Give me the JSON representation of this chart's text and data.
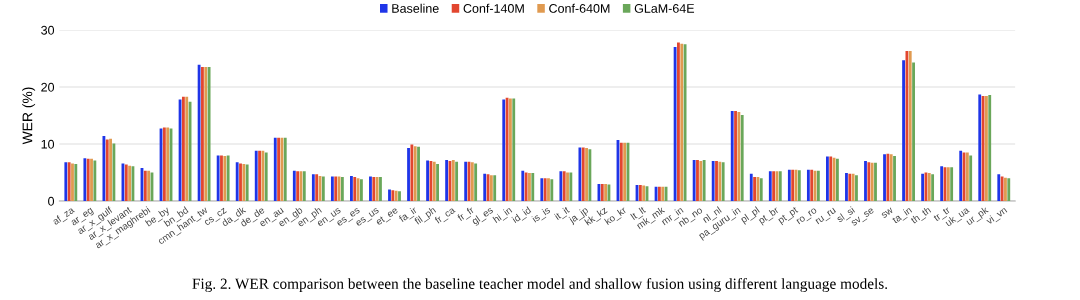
{
  "chart_data": {
    "type": "bar",
    "ylabel": "WER (%)",
    "ylim": [
      0,
      30
    ],
    "yticks": [
      0,
      10,
      20,
      30
    ],
    "grid": "y",
    "legend": "top",
    "categories": [
      "af_za",
      "ar_eg",
      "ar_x_gulf",
      "ar_x_levant",
      "ar_x_maghrebi",
      "be_by",
      "bn_bd",
      "cmn_hant_tw",
      "cs_cz",
      "da_dk",
      "de_de",
      "en_au",
      "en_gb",
      "en_ph",
      "en_us",
      "es_es",
      "es_us",
      "et_ee",
      "fa_ir",
      "fil_ph",
      "fr_ca",
      "fr_fr",
      "gl_es",
      "hi_in",
      "id_id",
      "is_is",
      "it_it",
      "ja_jp",
      "kk_kz",
      "ko_kr",
      "lt_lt",
      "mk_mk",
      "mr_in",
      "nb_no",
      "nl_nl",
      "pa_guru_in",
      "pl_pl",
      "pt_br",
      "pt_pt",
      "ro_ro",
      "ru_ru",
      "sl_si",
      "sv_se",
      "sw",
      "ta_in",
      "th_th",
      "tr_tr",
      "uk_ua",
      "ur_pk",
      "vi_vn"
    ],
    "series": [
      {
        "name": "Baseline",
        "color": "#1f35e8",
        "values": [
          6.8,
          7.5,
          11.4,
          6.6,
          5.8,
          12.7,
          17.8,
          23.9,
          8.0,
          6.8,
          8.8,
          11.1,
          5.3,
          4.7,
          4.3,
          4.4,
          4.3,
          2.0,
          9.3,
          7.1,
          7.2,
          6.9,
          4.8,
          17.8,
          5.3,
          4.0,
          5.2,
          9.4,
          3.0,
          10.7,
          2.8,
          2.5,
          27.0,
          7.2,
          7.0,
          15.8,
          4.8,
          5.2,
          5.5,
          5.5,
          7.8,
          4.9,
          7.0,
          8.2,
          24.7,
          4.8,
          6.1,
          8.8,
          18.7,
          4.7
        ]
      },
      {
        "name": "Conf-140M",
        "color": "#e2462f",
        "values": [
          6.8,
          7.4,
          10.8,
          6.4,
          5.3,
          12.9,
          18.3,
          23.5,
          8.0,
          6.6,
          8.8,
          11.1,
          5.2,
          4.7,
          4.3,
          4.2,
          4.2,
          1.9,
          9.9,
          7.0,
          7.0,
          6.9,
          4.7,
          18.1,
          5.0,
          4.0,
          5.2,
          9.4,
          3.0,
          10.2,
          2.8,
          2.5,
          27.8,
          7.2,
          7.0,
          15.8,
          4.2,
          5.2,
          5.5,
          5.5,
          7.8,
          4.8,
          6.8,
          8.3,
          26.3,
          5.0,
          5.9,
          8.5,
          18.4,
          4.3
        ]
      },
      {
        "name": "Conf-640M",
        "color": "#e09a50",
        "values": [
          6.6,
          7.4,
          10.9,
          6.2,
          5.3,
          12.9,
          18.3,
          23.5,
          7.9,
          6.5,
          8.8,
          11.1,
          5.2,
          4.4,
          4.3,
          4.0,
          4.2,
          1.8,
          9.6,
          6.9,
          7.2,
          6.8,
          4.5,
          18.0,
          4.9,
          4.0,
          5.0,
          9.3,
          3.0,
          10.2,
          2.7,
          2.5,
          27.6,
          7.0,
          6.9,
          15.6,
          4.2,
          5.2,
          5.5,
          5.3,
          7.6,
          4.8,
          6.7,
          8.2,
          26.3,
          4.9,
          5.9,
          8.5,
          18.4,
          4.1
        ]
      },
      {
        "name": "GLaM-64E",
        "color": "#6aa75a",
        "values": [
          6.5,
          7.1,
          10.1,
          6.1,
          5.0,
          12.7,
          17.4,
          23.5,
          8.0,
          6.4,
          8.5,
          11.1,
          5.2,
          4.3,
          4.2,
          3.8,
          4.2,
          1.7,
          9.5,
          6.5,
          6.9,
          6.6,
          4.5,
          18.0,
          4.9,
          3.8,
          5.0,
          9.1,
          2.9,
          10.2,
          2.6,
          2.5,
          27.5,
          7.2,
          6.8,
          15.1,
          4.0,
          5.2,
          5.4,
          5.3,
          7.4,
          4.5,
          6.7,
          7.9,
          24.3,
          4.7,
          5.9,
          8.0,
          18.6,
          4.0
        ]
      }
    ],
    "annotations": [
      "Fig. 2. WER comparison between the baseline teacher model and shallow fusion using different language models."
    ]
  }
}
